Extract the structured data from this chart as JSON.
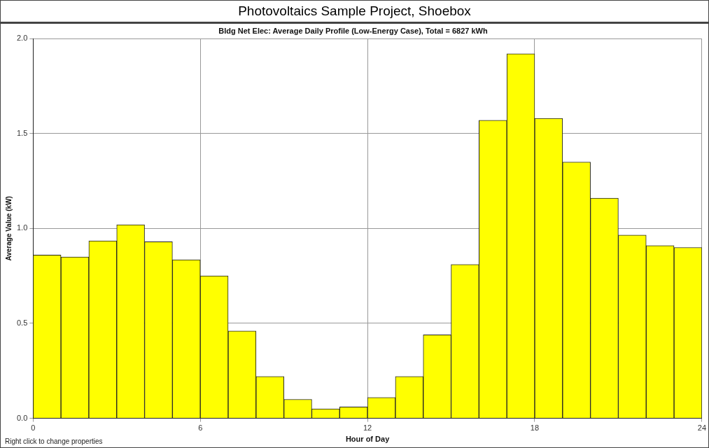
{
  "chart_data": {
    "type": "histogram",
    "title": "Photovoltaics Sample Project, Shoebox",
    "subtitle": "Bldg Net Elec: Average Daily Profile (Low-Energy Case), Total = 6827 kWh",
    "xlabel": "Hour of Day",
    "ylabel": "Average Value (kW)",
    "bins": [
      0,
      1,
      2,
      3,
      4,
      5,
      6,
      7,
      8,
      9,
      10,
      11,
      12,
      13,
      14,
      15,
      16,
      17,
      18,
      19,
      20,
      21,
      22,
      23,
      24
    ],
    "values": [
      0.86,
      0.85,
      0.935,
      1.02,
      0.93,
      0.835,
      0.75,
      0.46,
      0.22,
      0.1,
      0.05,
      0.06,
      0.11,
      0.22,
      0.44,
      0.81,
      1.57,
      1.92,
      1.58,
      1.35,
      1.16,
      0.965,
      0.91,
      0.9
    ],
    "color": "#ffff00",
    "xlim": [
      0,
      24
    ],
    "xticks": [
      0,
      6,
      12,
      18,
      24
    ],
    "ylim": [
      0,
      2
    ],
    "yticks": [
      {
        "value": 0,
        "label": "0.0"
      },
      {
        "value": 0.5,
        "label": "0.5"
      },
      {
        "value": 1,
        "label": "1.0"
      },
      {
        "value": 1.5,
        "label": "1.5"
      },
      {
        "value": 2,
        "label": "2.0"
      }
    ],
    "grid": true,
    "annotations": [
      "Right click to change properties"
    ]
  }
}
